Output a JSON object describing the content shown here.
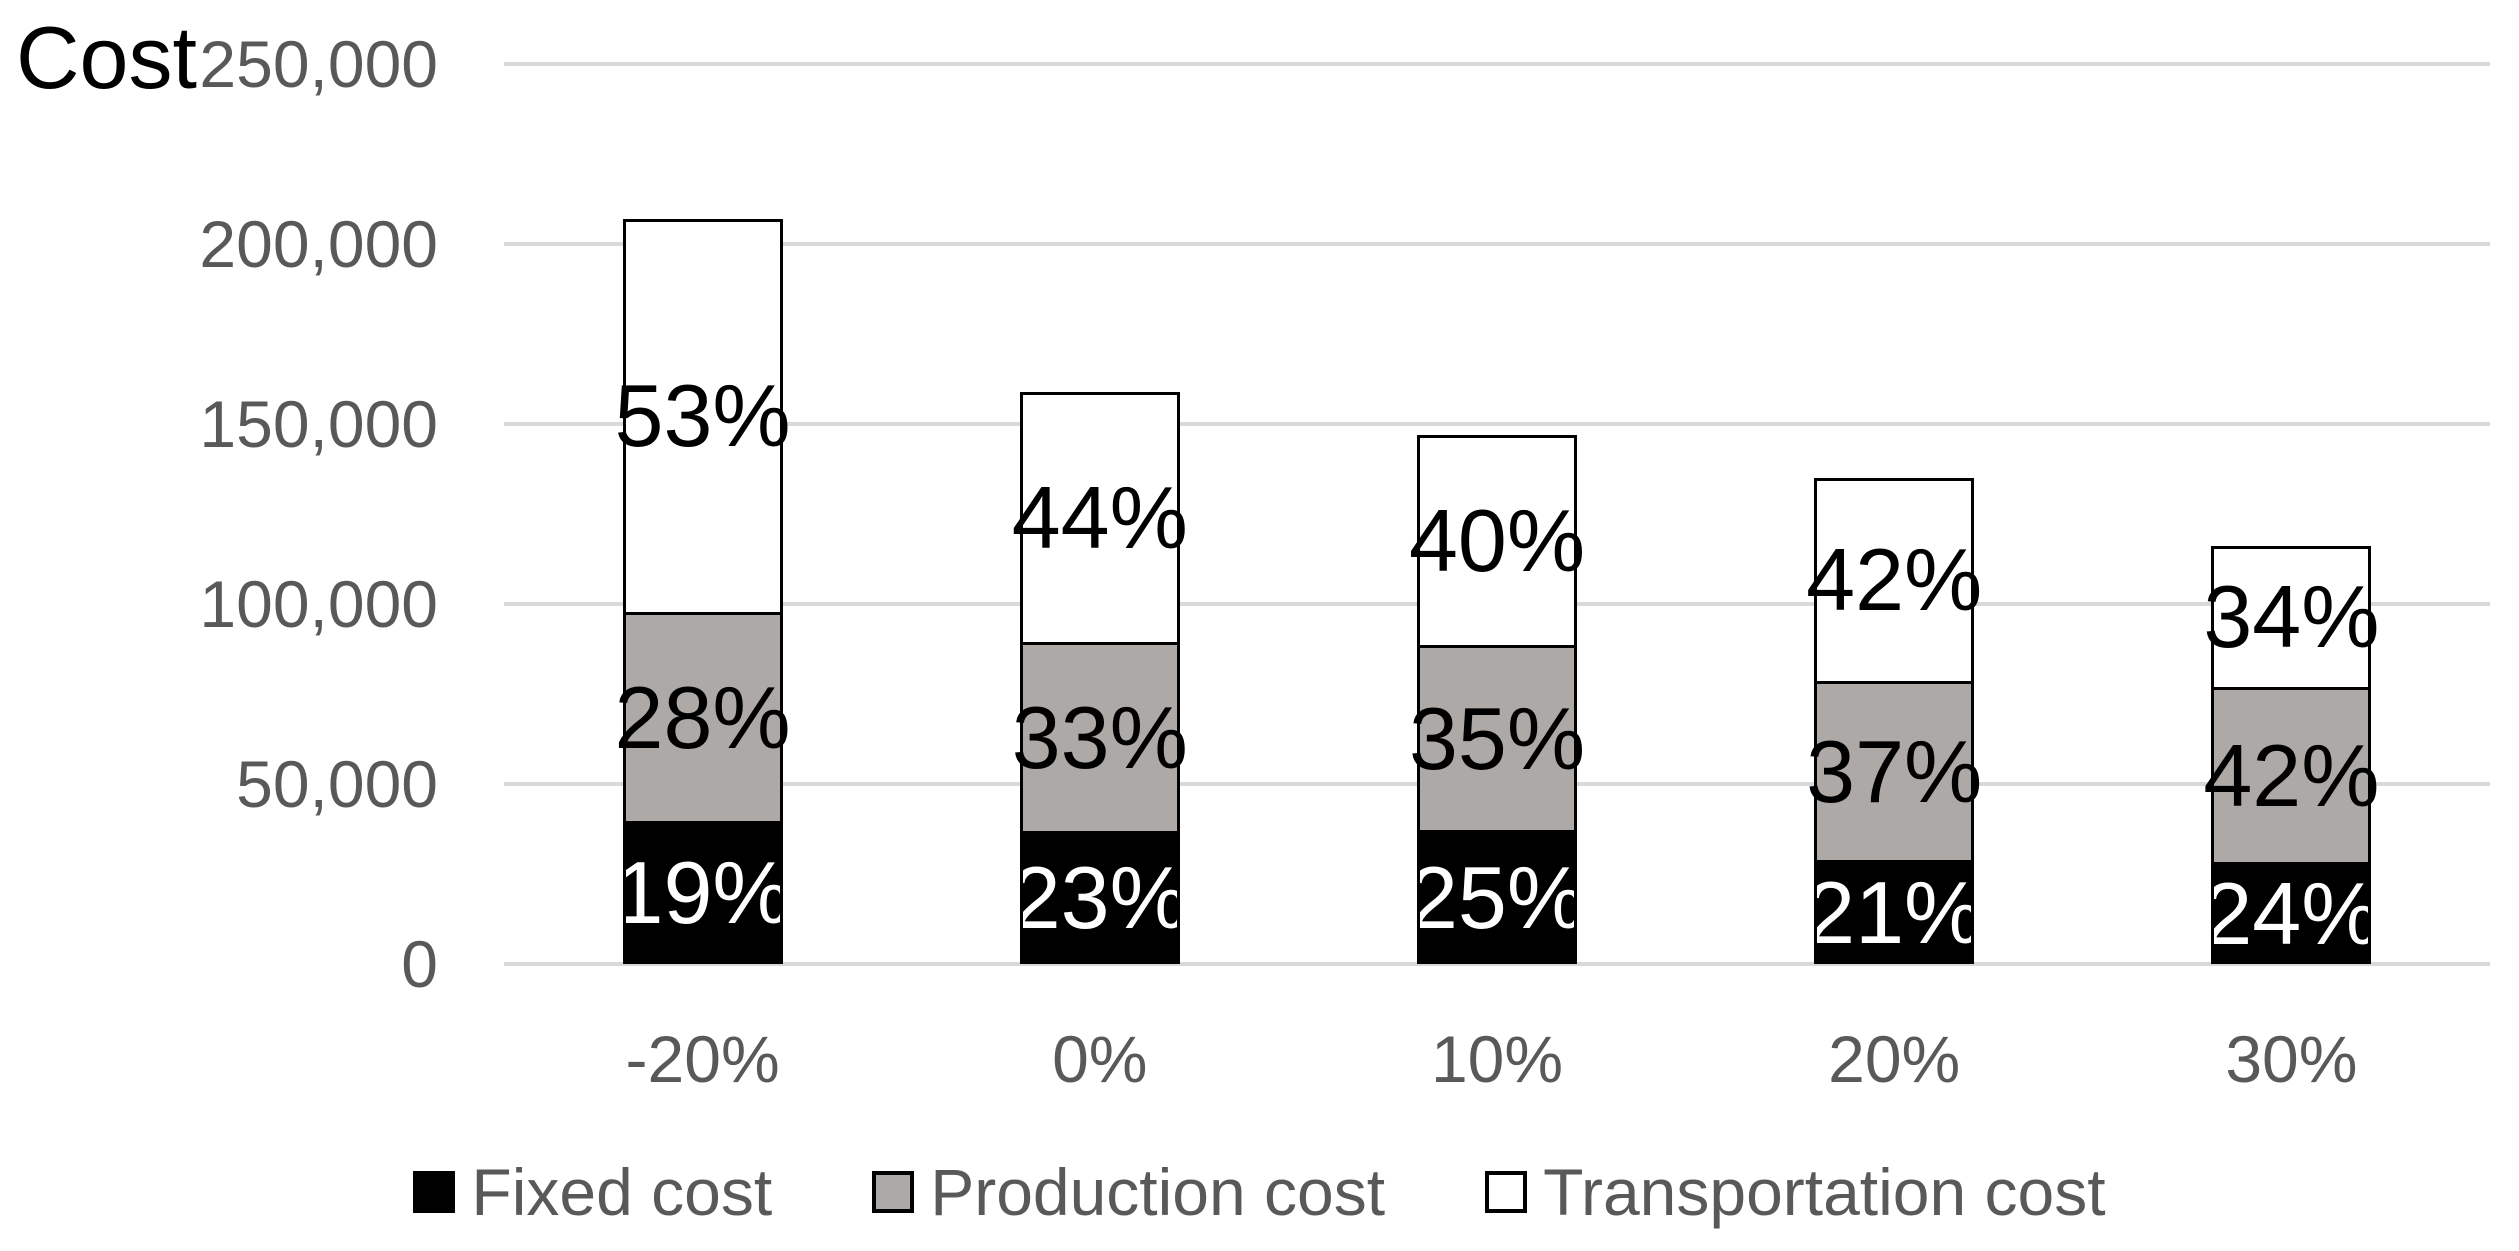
{
  "title": "Cost",
  "y_axis": {
    "ticks": [
      "250,000",
      "200,000",
      "150,000",
      "100,000",
      "50,000",
      "0"
    ],
    "min": 0,
    "max": 250000
  },
  "x_axis": {
    "categories": [
      "-20%",
      "0%",
      "10%",
      "20%",
      "30%"
    ]
  },
  "legend": {
    "items": [
      {
        "label": "Fixed cost",
        "color": "#000000"
      },
      {
        "label": "Production cost",
        "color": "#ACA9A6"
      },
      {
        "label": "Transportation cost",
        "color": "#FFFFFF"
      }
    ]
  },
  "colors": {
    "grid": "#D9D9D9",
    "axis_text": "#595959",
    "bar_border": "#000000",
    "background": "#FFFFFF"
  },
  "chart_data": {
    "type": "bar",
    "stacked": true,
    "title": "Cost",
    "categories": [
      "-20%",
      "0%",
      "10%",
      "20%",
      "30%"
    ],
    "ylim": [
      0,
      250000
    ],
    "grid": true,
    "legend_position": "bottom",
    "estimated_totals": [
      207000,
      159000,
      147000,
      135000,
      116000
    ],
    "series": [
      {
        "name": "Fixed cost",
        "color": "#000000",
        "label_color": "#FFFFFF",
        "percentages": [
          19,
          23,
          25,
          21,
          24
        ],
        "percent_labels": [
          "19%",
          "23%",
          "25%",
          "21%",
          "24%"
        ],
        "estimated_values": [
          39330,
          36570,
          36750,
          28350,
          27840
        ]
      },
      {
        "name": "Production cost",
        "color": "#ACA9A6",
        "label_color": "#000000",
        "percentages": [
          28,
          33,
          35,
          37,
          42
        ],
        "percent_labels": [
          "28%",
          "33%",
          "35%",
          "37%",
          "42%"
        ],
        "estimated_values": [
          57960,
          52470,
          51450,
          49950,
          48720
        ]
      },
      {
        "name": "Transportation cost",
        "color": "#FFFFFF",
        "label_color": "#000000",
        "percentages": [
          53,
          44,
          40,
          42,
          34
        ],
        "percent_labels": [
          "53%",
          "44%",
          "40%",
          "42%",
          "34%"
        ],
        "estimated_values": [
          109710,
          69960,
          58800,
          56700,
          39440
        ]
      }
    ]
  }
}
